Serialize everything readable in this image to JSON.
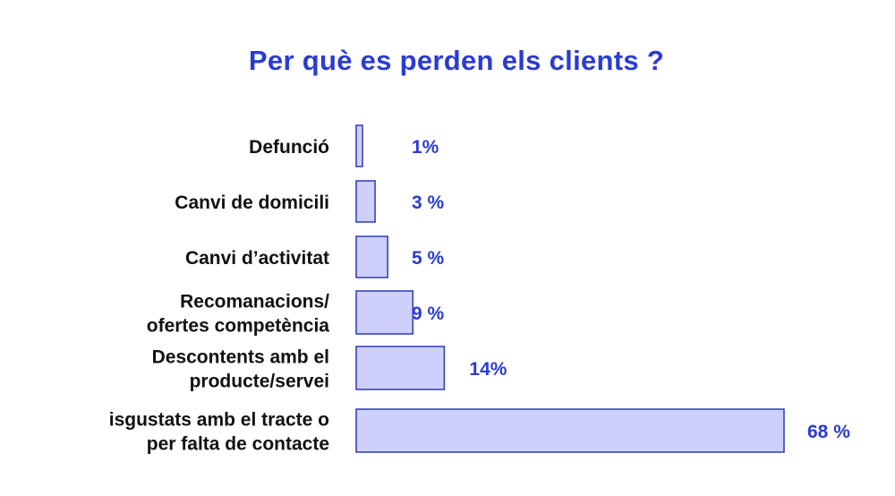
{
  "chart_data": {
    "type": "bar",
    "orientation": "horizontal",
    "title": "Per què es perden els clients ?",
    "categories": [
      [
        "Defunció"
      ],
      [
        "Canvi de domicili"
      ],
      [
        "Canvi d’activitat"
      ],
      [
        "Recomanacions/",
        "ofertes competència"
      ],
      [
        "Descontents amb el",
        "producte/servei"
      ],
      [
        "isgustats amb el tracte o",
        "per falta de contacte"
      ]
    ],
    "values": [
      1,
      3,
      5,
      9,
      14,
      68
    ],
    "value_labels": [
      "1%",
      "3 %",
      "5 %",
      "9 %",
      "14%",
      "68 %"
    ],
    "unit": "%",
    "xlim": [
      0,
      68
    ],
    "grid": false,
    "legend": "none",
    "colors": {
      "title": "#2a3bd2",
      "bar_fill": "#cdd0fb",
      "bar_stroke": "#2f39b6",
      "value_label": "#2a3bd2",
      "category_label": "#111111"
    }
  }
}
